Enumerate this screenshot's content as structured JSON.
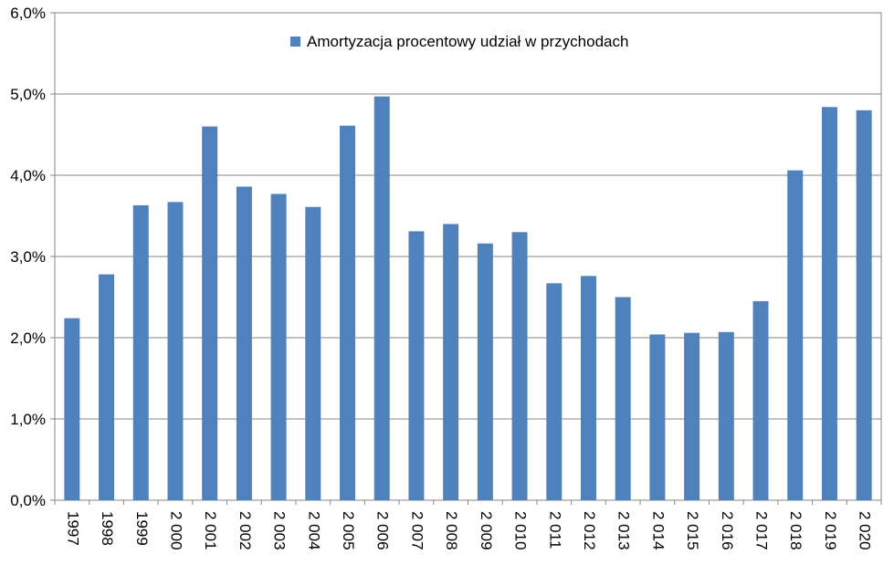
{
  "chart_data": {
    "type": "bar",
    "categories": [
      "1997",
      "1998",
      "1999",
      "2 000",
      "2 001",
      "2 002",
      "2 003",
      "2 004",
      "2 005",
      "2 006",
      "2 007",
      "2 008",
      "2 009",
      "2 010",
      "2 011",
      "2 012",
      "2 013",
      "2 014",
      "2 015",
      "2 016",
      "2 017",
      "2 018",
      "2 019",
      "2 020"
    ],
    "series": [
      {
        "name": "Amortyzacja procentowy udział w przychodach",
        "color": "#4F81BD",
        "values": [
          2.24,
          2.78,
          3.63,
          3.67,
          4.6,
          3.86,
          3.77,
          3.61,
          4.61,
          4.97,
          3.31,
          3.4,
          3.16,
          3.3,
          2.67,
          2.76,
          2.5,
          2.04,
          2.06,
          2.07,
          2.45,
          4.06,
          4.84,
          4.8
        ]
      }
    ],
    "yticks": [
      "0,0%",
      "1,0%",
      "2,0%",
      "3,0%",
      "4,0%",
      "5,0%",
      "6,0%"
    ],
    "ylim": [
      0,
      6
    ],
    "title": "",
    "xlabel": "",
    "ylabel": "",
    "legend_position": "top-center",
    "grid": true
  }
}
